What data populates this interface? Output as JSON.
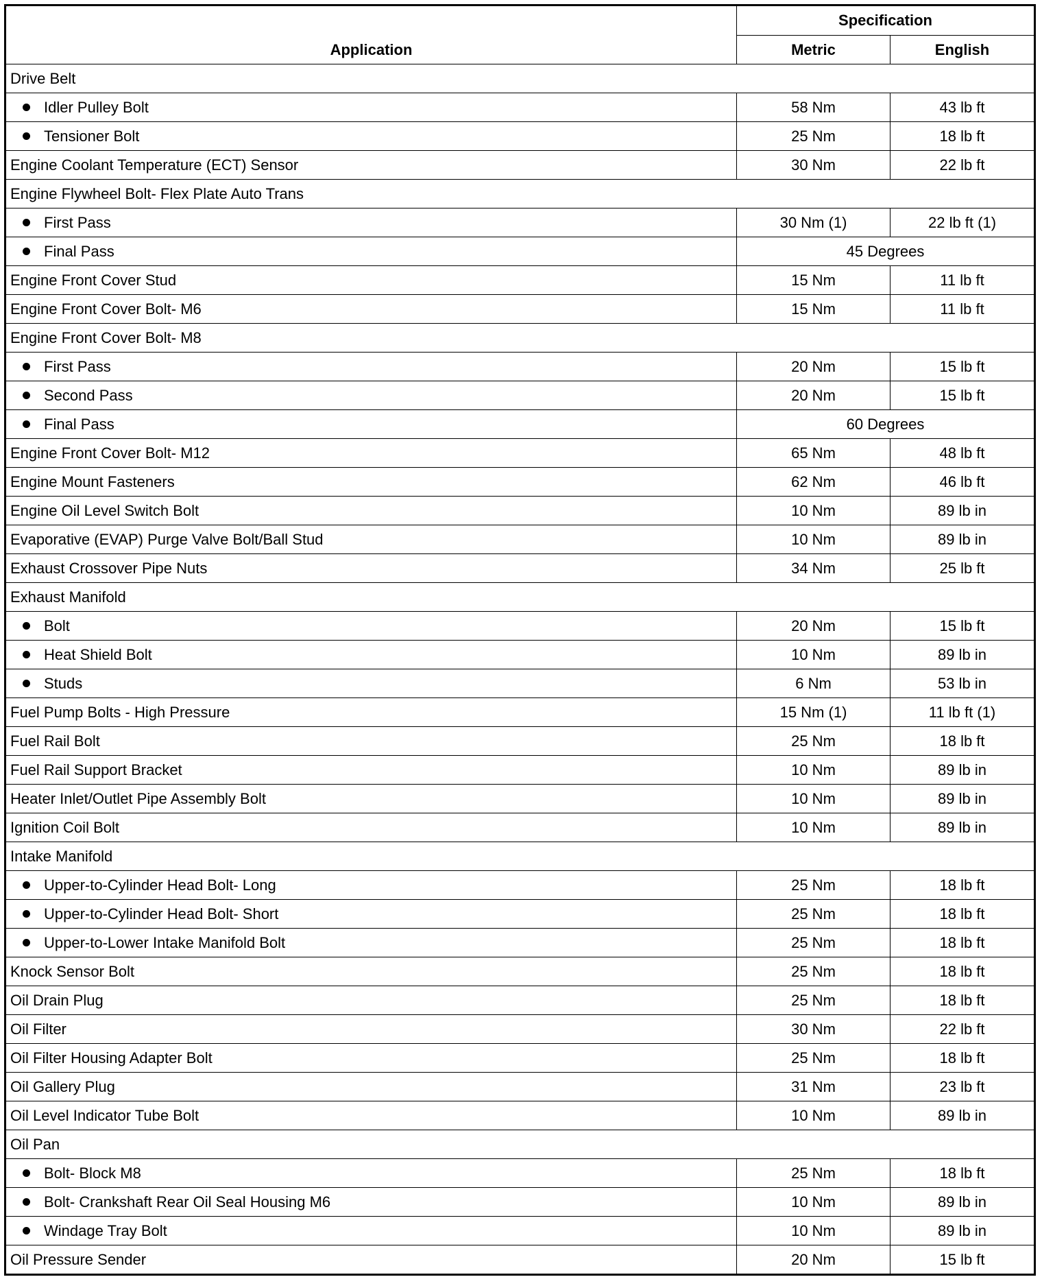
{
  "header": {
    "application": "Application",
    "specification": "Specification",
    "metric": "Metric",
    "english": "English"
  },
  "rows": [
    {
      "label": "Drive Belt",
      "type": "group"
    },
    {
      "label": "Idler Pulley Bolt",
      "type": "sub",
      "metric": "58 Nm",
      "english": "43 lb ft"
    },
    {
      "label": "Tensioner Bolt",
      "type": "sub",
      "metric": "25 Nm",
      "english": "18 lb ft"
    },
    {
      "label": "Engine Coolant Temperature (ECT) Sensor",
      "type": "item",
      "metric": "30 Nm",
      "english": "22 lb ft"
    },
    {
      "label": "Engine Flywheel Bolt- Flex Plate Auto Trans",
      "type": "group"
    },
    {
      "label": "First Pass",
      "type": "sub",
      "metric": "30 Nm (1)",
      "english": "22 lb ft (1)"
    },
    {
      "label": "Final Pass",
      "type": "sub",
      "span": "45 Degrees"
    },
    {
      "label": "Engine Front Cover Stud",
      "type": "item",
      "metric": "15 Nm",
      "english": "11 lb ft"
    },
    {
      "label": "Engine Front Cover Bolt- M6",
      "type": "item",
      "metric": "15 Nm",
      "english": "11 lb ft"
    },
    {
      "label": "Engine Front Cover Bolt- M8",
      "type": "group"
    },
    {
      "label": "First Pass",
      "type": "sub",
      "metric": "20 Nm",
      "english": "15 lb ft"
    },
    {
      "label": "Second Pass",
      "type": "sub",
      "metric": "20 Nm",
      "english": "15 lb ft"
    },
    {
      "label": "Final Pass",
      "type": "sub",
      "span": "60 Degrees"
    },
    {
      "label": "Engine Front Cover Bolt- M12",
      "type": "item",
      "metric": "65 Nm",
      "english": "48 lb ft"
    },
    {
      "label": "Engine Mount Fasteners",
      "type": "item",
      "metric": "62 Nm",
      "english": "46 lb ft"
    },
    {
      "label": "Engine Oil Level Switch Bolt",
      "type": "item",
      "metric": "10 Nm",
      "english": "89 lb in"
    },
    {
      "label": "Evaporative (EVAP) Purge Valve Bolt/Ball Stud",
      "type": "item",
      "metric": "10 Nm",
      "english": "89 lb in"
    },
    {
      "label": "Exhaust Crossover Pipe Nuts",
      "type": "item",
      "metric": "34 Nm",
      "english": "25 lb ft"
    },
    {
      "label": "Exhaust Manifold",
      "type": "group"
    },
    {
      "label": "Bolt",
      "type": "sub",
      "metric": "20 Nm",
      "english": "15 lb ft"
    },
    {
      "label": "Heat Shield Bolt",
      "type": "sub",
      "metric": "10 Nm",
      "english": "89 lb in"
    },
    {
      "label": "Studs",
      "type": "sub",
      "metric": "6 Nm",
      "english": "53 lb in"
    },
    {
      "label": "Fuel Pump Bolts - High Pressure",
      "type": "item",
      "metric": "15 Nm (1)",
      "english": "11 lb ft (1)"
    },
    {
      "label": "Fuel Rail Bolt",
      "type": "item",
      "metric": "25 Nm",
      "english": "18 lb ft"
    },
    {
      "label": "Fuel Rail Support Bracket",
      "type": "item",
      "metric": "10 Nm",
      "english": "89 lb in"
    },
    {
      "label": "Heater Inlet/Outlet Pipe Assembly Bolt",
      "type": "item",
      "metric": "10 Nm",
      "english": "89 lb in"
    },
    {
      "label": "Ignition Coil Bolt",
      "type": "item",
      "metric": "10 Nm",
      "english": "89 lb in"
    },
    {
      "label": "Intake Manifold",
      "type": "group"
    },
    {
      "label": "Upper-to-Cylinder Head Bolt- Long",
      "type": "sub",
      "metric": "25 Nm",
      "english": "18 lb ft"
    },
    {
      "label": "Upper-to-Cylinder Head Bolt- Short",
      "type": "sub",
      "metric": "25 Nm",
      "english": "18 lb ft"
    },
    {
      "label": "Upper-to-Lower Intake Manifold Bolt",
      "type": "sub",
      "metric": "25 Nm",
      "english": "18 lb ft"
    },
    {
      "label": "Knock Sensor Bolt",
      "type": "item",
      "metric": "25 Nm",
      "english": "18 lb ft"
    },
    {
      "label": "Oil Drain Plug",
      "type": "item",
      "metric": "25 Nm",
      "english": "18 lb ft"
    },
    {
      "label": "Oil Filter",
      "type": "item",
      "metric": "30 Nm",
      "english": "22 lb ft"
    },
    {
      "label": "Oil Filter Housing Adapter Bolt",
      "type": "item",
      "metric": "25 Nm",
      "english": "18 lb ft"
    },
    {
      "label": "Oil Gallery Plug",
      "type": "item",
      "metric": "31 Nm",
      "english": "23 lb ft"
    },
    {
      "label": "Oil Level Indicator Tube Bolt",
      "type": "item",
      "metric": "10 Nm",
      "english": "89 lb in"
    },
    {
      "label": "Oil Pan",
      "type": "group"
    },
    {
      "label": "Bolt- Block M8",
      "type": "sub",
      "metric": "25 Nm",
      "english": "18 lb ft"
    },
    {
      "label": "Bolt- Crankshaft Rear Oil Seal Housing M6",
      "type": "sub",
      "metric": "10 Nm",
      "english": "89 lb in"
    },
    {
      "label": "Windage Tray Bolt",
      "type": "sub",
      "metric": "10 Nm",
      "english": "89 lb in"
    },
    {
      "label": "Oil Pressure Sender",
      "type": "item",
      "metric": "20 Nm",
      "english": "15 lb ft"
    }
  ]
}
